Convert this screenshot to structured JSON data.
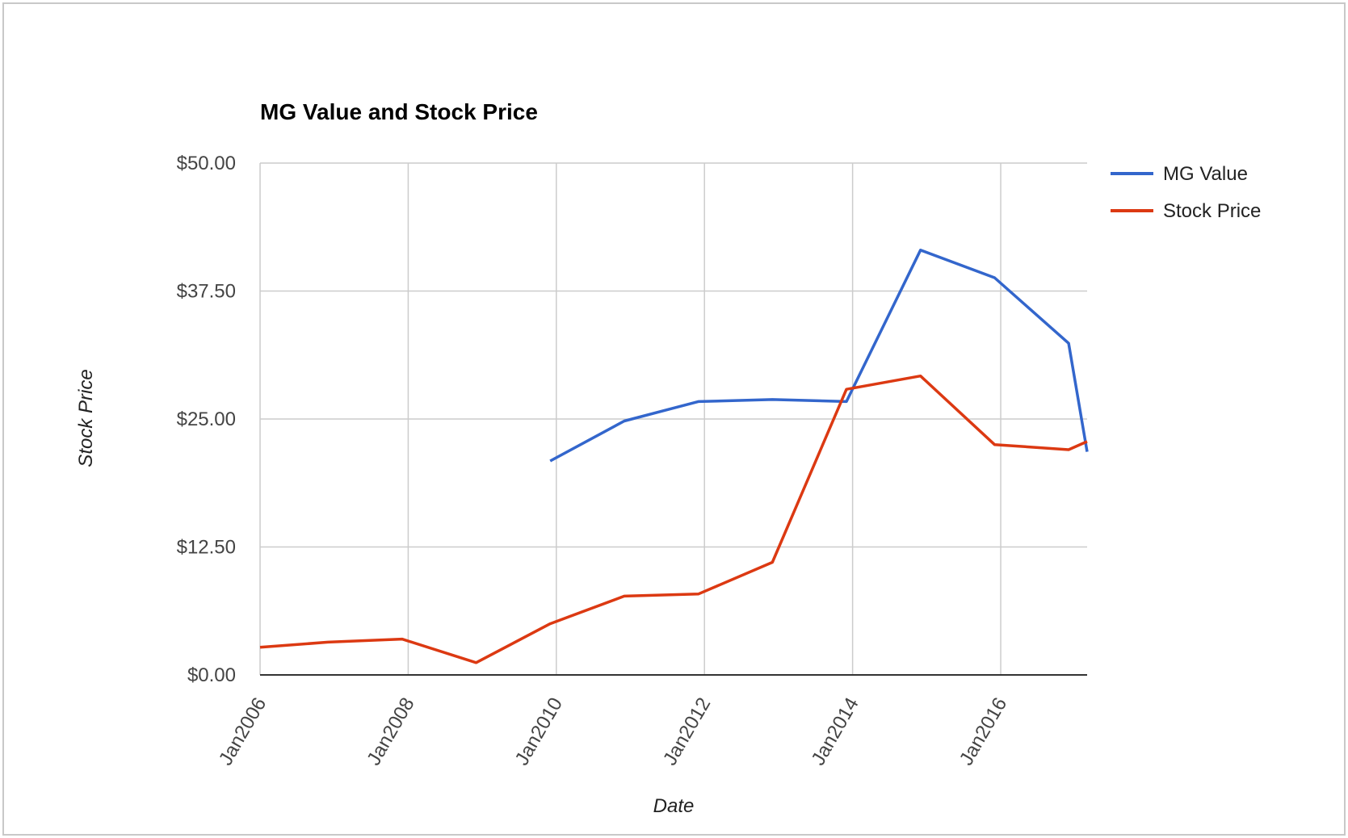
{
  "chart_data": {
    "type": "line",
    "title": "MG Value and Stock Price",
    "xlabel": "Date",
    "ylabel": "Stock Price",
    "x_range": [
      "2006-01",
      "2017-03"
    ],
    "ylim": [
      0,
      50
    ],
    "y_ticks": [
      "$0.00",
      "$12.50",
      "$25.00",
      "$37.50",
      "$50.00"
    ],
    "y_tick_values": [
      0,
      12.5,
      25,
      37.5,
      50
    ],
    "x_ticks": [
      "Jan2006",
      "Jan2008",
      "Jan2010",
      "Jan2012",
      "Jan2014",
      "Jan2016"
    ],
    "x_tick_dates": [
      "2006-01",
      "2008-01",
      "2010-01",
      "2012-01",
      "2014-01",
      "2016-01"
    ],
    "grid": true,
    "legend_position": "right",
    "series": [
      {
        "name": "MG Value",
        "color": "#3366cc",
        "points": [
          [
            "2009-12",
            20.9
          ],
          [
            "2010-12",
            24.8
          ],
          [
            "2011-12",
            26.7
          ],
          [
            "2012-12",
            26.9
          ],
          [
            "2013-12",
            26.7
          ],
          [
            "2014-12",
            41.5
          ],
          [
            "2015-12",
            38.8
          ],
          [
            "2016-12",
            32.4
          ],
          [
            "2017-03",
            21.8
          ]
        ]
      },
      {
        "name": "Stock Price",
        "color": "#dc3912",
        "points": [
          [
            "2006-01",
            2.7
          ],
          [
            "2006-12",
            3.2
          ],
          [
            "2007-12",
            3.5
          ],
          [
            "2008-12",
            1.2
          ],
          [
            "2009-12",
            5.0
          ],
          [
            "2010-12",
            7.7
          ],
          [
            "2011-12",
            7.9
          ],
          [
            "2012-12",
            11.0
          ],
          [
            "2013-12",
            27.9
          ],
          [
            "2014-12",
            29.2
          ],
          [
            "2015-12",
            22.5
          ],
          [
            "2016-12",
            22.0
          ],
          [
            "2017-03",
            22.8
          ]
        ]
      }
    ]
  }
}
